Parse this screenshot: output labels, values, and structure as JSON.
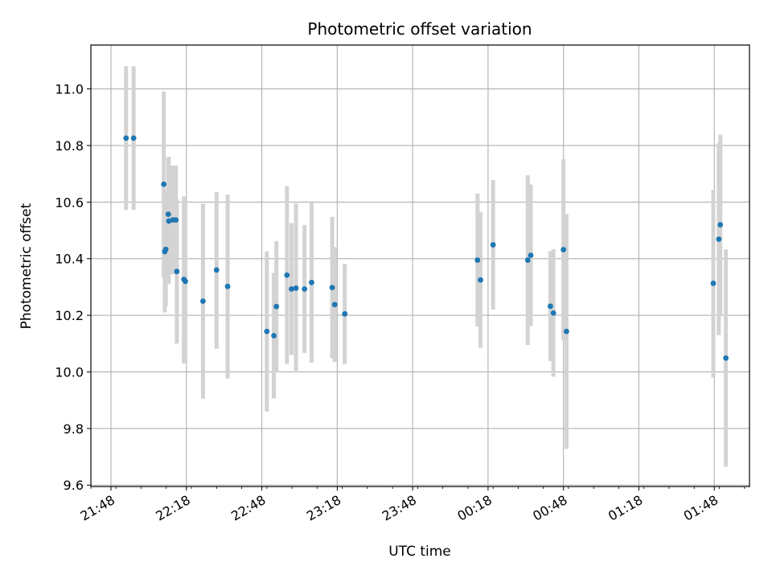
{
  "chart_data": {
    "type": "scatter",
    "title": "Photometric offset variation",
    "xlabel": "UTC time",
    "ylabel": "Photometric offset",
    "grid": true,
    "x_unit": "HH:MM (UTC)",
    "xlim": [
      "21:40",
      "02:02"
    ],
    "ylim": [
      9.595,
      11.155
    ],
    "x_ticks": [
      "21:48",
      "22:18",
      "22:48",
      "23:18",
      "23:48",
      "00:18",
      "00:48",
      "01:18",
      "01:48"
    ],
    "y_ticks": [
      "9.6",
      "9.8",
      "10.0",
      "10.2",
      "10.4",
      "10.6",
      "10.8",
      "11.0"
    ],
    "marker_color": "#1f77b4",
    "errorbar_color": "#d3d3d3",
    "points": [
      {
        "x": "21:54:00",
        "y": 10.826,
        "ylow": 10.572,
        "yhigh": 11.08
      },
      {
        "x": "21:57:00",
        "y": 10.826,
        "ylow": 10.572,
        "yhigh": 11.08
      },
      {
        "x": "22:09:00",
        "y": 10.663,
        "ylow": 10.335,
        "yhigh": 10.991
      },
      {
        "x": "22:09:24",
        "y": 10.425,
        "ylow": 10.21,
        "yhigh": 10.64
      },
      {
        "x": "22:09:48",
        "y": 10.433,
        "ylow": 10.233,
        "yhigh": 10.633
      },
      {
        "x": "22:10:48",
        "y": 10.557,
        "ylow": 10.357,
        "yhigh": 10.757
      },
      {
        "x": "22:11:00",
        "y": 10.533,
        "ylow": 10.31,
        "yhigh": 10.76
      },
      {
        "x": "22:12:36",
        "y": 10.537,
        "ylow": 10.345,
        "yhigh": 10.729
      },
      {
        "x": "22:13:48",
        "y": 10.537,
        "ylow": 10.345,
        "yhigh": 10.729
      },
      {
        "x": "22:14:12",
        "y": 10.355,
        "ylow": 10.1,
        "yhigh": 10.61
      },
      {
        "x": "22:17:00",
        "y": 10.327,
        "ylow": 10.03,
        "yhigh": 10.62
      },
      {
        "x": "22:17:36",
        "y": 10.32,
        "ylow": 10.035,
        "yhigh": 10.605
      },
      {
        "x": "22:24:36",
        "y": 10.25,
        "ylow": 9.905,
        "yhigh": 10.595
      },
      {
        "x": "22:30:00",
        "y": 10.36,
        "ylow": 10.082,
        "yhigh": 10.635
      },
      {
        "x": "22:34:24",
        "y": 10.302,
        "ylow": 9.977,
        "yhigh": 10.627
      },
      {
        "x": "22:50:00",
        "y": 10.143,
        "ylow": 9.86,
        "yhigh": 10.426
      },
      {
        "x": "22:52:48",
        "y": 10.128,
        "ylow": 9.906,
        "yhigh": 10.35
      },
      {
        "x": "22:53:48",
        "y": 10.231,
        "ylow": 10.0,
        "yhigh": 10.462
      },
      {
        "x": "22:58:00",
        "y": 10.342,
        "ylow": 10.028,
        "yhigh": 10.656
      },
      {
        "x": "22:59:48",
        "y": 10.293,
        "ylow": 10.06,
        "yhigh": 10.526
      },
      {
        "x": "23:01:36",
        "y": 10.296,
        "ylow": 9.997,
        "yhigh": 10.595
      },
      {
        "x": "23:05:00",
        "y": 10.293,
        "ylow": 10.067,
        "yhigh": 10.519
      },
      {
        "x": "23:07:48",
        "y": 10.316,
        "ylow": 10.033,
        "yhigh": 10.599
      },
      {
        "x": "23:16:00",
        "y": 10.298,
        "ylow": 10.048,
        "yhigh": 10.548
      },
      {
        "x": "23:17:00",
        "y": 10.238,
        "ylow": 10.035,
        "yhigh": 10.441
      },
      {
        "x": "23:21:00",
        "y": 10.205,
        "ylow": 10.028,
        "yhigh": 10.382
      },
      {
        "x": "00:13:48",
        "y": 10.395,
        "ylow": 10.16,
        "yhigh": 10.63
      },
      {
        "x": "00:15:00",
        "y": 10.325,
        "ylow": 10.085,
        "yhigh": 10.565
      },
      {
        "x": "00:20:00",
        "y": 10.449,
        "ylow": 10.22,
        "yhigh": 10.678
      },
      {
        "x": "00:33:48",
        "y": 10.395,
        "ylow": 10.095,
        "yhigh": 10.695
      },
      {
        "x": "00:35:00",
        "y": 10.412,
        "ylow": 10.162,
        "yhigh": 10.662
      },
      {
        "x": "00:42:48",
        "y": 10.232,
        "ylow": 10.038,
        "yhigh": 10.426
      },
      {
        "x": "00:44:00",
        "y": 10.208,
        "ylow": 9.983,
        "yhigh": 10.433
      },
      {
        "x": "00:48:00",
        "y": 10.432,
        "ylow": 10.112,
        "yhigh": 10.752
      },
      {
        "x": "00:49:12",
        "y": 10.143,
        "ylow": 9.728,
        "yhigh": 10.558
      },
      {
        "x": "01:47:36",
        "y": 10.313,
        "ylow": 9.98,
        "yhigh": 10.643
      },
      {
        "x": "01:49:48",
        "y": 10.469,
        "ylow": 10.13,
        "yhigh": 10.808
      },
      {
        "x": "01:50:24",
        "y": 10.52,
        "ylow": 10.202,
        "yhigh": 10.838
      },
      {
        "x": "01:52:36",
        "y": 10.049,
        "ylow": 9.665,
        "yhigh": 10.433
      }
    ]
  }
}
